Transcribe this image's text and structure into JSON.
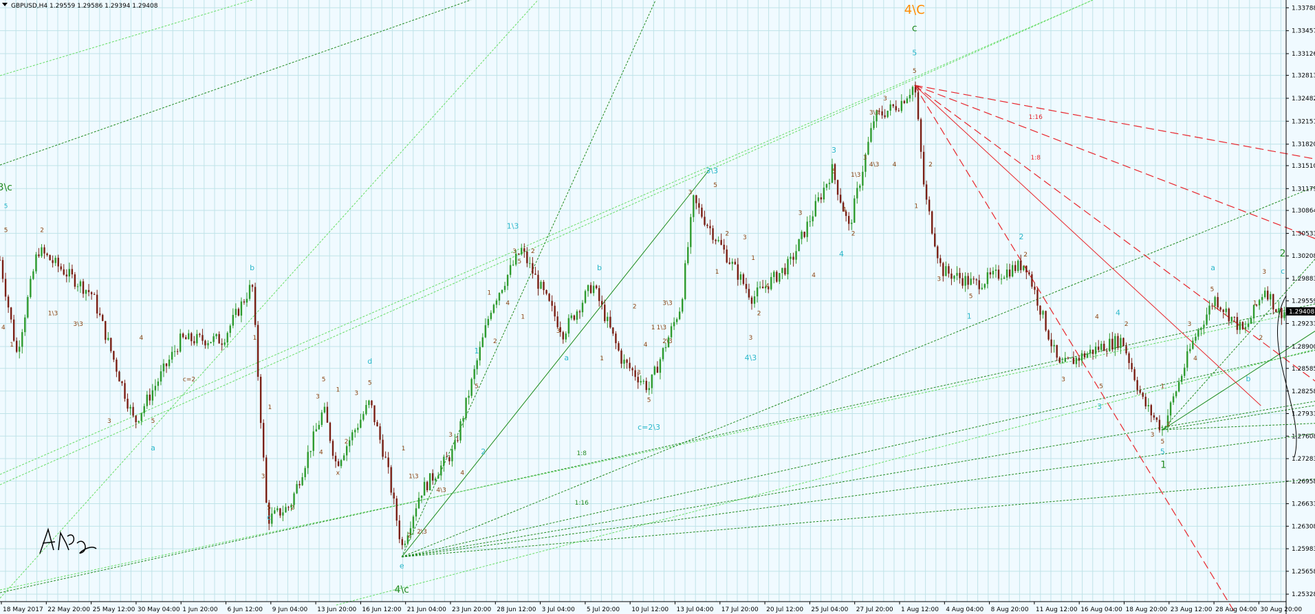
{
  "chart_data": {
    "type": "candlestick",
    "title": "GBPUSD,H4  1.29559 1.29586 1.29394 1.29408",
    "symbol": "GBPUSD",
    "timeframe": "H4",
    "ohlc_header": {
      "open": 1.29559,
      "high": 1.29586,
      "low": 1.29394,
      "close": 1.29408
    },
    "current_price": "1.29408",
    "ylim": [
      1.2522,
      1.339
    ],
    "y_ticks": [
      "1.33788",
      "1.33457",
      "1.33126",
      "1.32813",
      "1.32482",
      "1.32151",
      "1.31820",
      "1.31510",
      "1.31179",
      "1.30864",
      "1.30533",
      "1.30208",
      "1.29883",
      "1.29559",
      "1.29233",
      "1.28900",
      "1.28585",
      "1.28258",
      "1.27933",
      "1.27608",
      "1.27283",
      "1.26958",
      "1.26633",
      "1.26308",
      "1.25983",
      "1.25658",
      "1.25328"
    ],
    "x_ticks": [
      "18 May 2017",
      "22 May 20:00",
      "25 May 12:00",
      "30 May 04:00",
      "1 Jun 20:00",
      "6 Jun 12:00",
      "9 Jun 04:00",
      "13 Jun 20:00",
      "16 Jun 12:00",
      "21 Jun 04:00",
      "23 Jun 20:00",
      "28 Jun 12:00",
      "3 Jul 04:00",
      "5 Jul 20:00",
      "10 Jul 12:00",
      "13 Jul 04:00",
      "17 Jul 20:00",
      "20 Jul 12:00",
      "25 Jul 04:00",
      "27 Jul 20:00",
      "1 Aug 12:00",
      "4 Aug 04:00",
      "8 Aug 20:00",
      "11 Aug 12:00",
      "16 Aug 04:00",
      "18 Aug 20:00",
      "23 Aug 12:00",
      "28 Aug 04:00",
      "30 Aug 20:00"
    ],
    "pivots": [
      {
        "t": 0,
        "p": 1.3015
      },
      {
        "t": 20,
        "p": 1.288
      },
      {
        "t": 45,
        "p": 1.303
      },
      {
        "t": 110,
        "p": 1.2965
      },
      {
        "t": 160,
        "p": 1.278
      },
      {
        "t": 215,
        "p": 1.29
      },
      {
        "t": 265,
        "p": 1.29
      },
      {
        "t": 300,
        "p": 1.298
      },
      {
        "t": 318,
        "p": 1.264
      },
      {
        "t": 345,
        "p": 1.266
      },
      {
        "t": 385,
        "p": 1.28
      },
      {
        "t": 400,
        "p": 1.272
      },
      {
        "t": 440,
        "p": 1.281
      },
      {
        "t": 460,
        "p": 1.272
      },
      {
        "t": 478,
        "p": 1.26
      },
      {
        "t": 500,
        "p": 1.268
      },
      {
        "t": 540,
        "p": 1.274
      },
      {
        "t": 585,
        "p": 1.295
      },
      {
        "t": 620,
        "p": 1.303
      },
      {
        "t": 670,
        "p": 1.291
      },
      {
        "t": 705,
        "p": 1.298
      },
      {
        "t": 740,
        "p": 1.287
      },
      {
        "t": 772,
        "p": 1.283
      },
      {
        "t": 810,
        "p": 1.295
      },
      {
        "t": 825,
        "p": 1.31
      },
      {
        "t": 850,
        "p": 1.305
      },
      {
        "t": 895,
        "p": 1.296
      },
      {
        "t": 940,
        "p": 1.301
      },
      {
        "t": 990,
        "p": 1.3145
      },
      {
        "t": 1010,
        "p": 1.306
      },
      {
        "t": 1040,
        "p": 1.322
      },
      {
        "t": 1070,
        "p": 1.324
      },
      {
        "t": 1088,
        "p": 1.3268
      },
      {
        "t": 1100,
        "p": 1.311
      },
      {
        "t": 1120,
        "p": 1.3
      },
      {
        "t": 1160,
        "p": 1.298
      },
      {
        "t": 1220,
        "p": 1.301
      },
      {
        "t": 1260,
        "p": 1.286
      },
      {
        "t": 1310,
        "p": 1.289
      },
      {
        "t": 1335,
        "p": 1.29
      },
      {
        "t": 1360,
        "p": 1.281
      },
      {
        "t": 1383,
        "p": 1.277
      },
      {
        "t": 1420,
        "p": 1.29
      },
      {
        "t": 1445,
        "p": 1.296
      },
      {
        "t": 1480,
        "p": 1.291
      },
      {
        "t": 1505,
        "p": 1.2975
      },
      {
        "t": 1520,
        "p": 1.294
      }
    ],
    "fib_labels": [
      "1:16",
      "1:8",
      "1:8",
      "1:16"
    ],
    "wave_labels": [
      {
        "text": "4\\C",
        "t": 1088,
        "p": 1.337,
        "color": "#ff8c00",
        "size": 18
      },
      {
        "text": "c",
        "t": 1088,
        "p": 1.3345,
        "color": "#228b22",
        "size": 14
      },
      {
        "text": "5",
        "t": 1088,
        "p": 1.331,
        "color": "#2ab7ca",
        "size": 11
      },
      {
        "text": "5",
        "t": 1088,
        "p": 1.3285,
        "color": "#8b4513",
        "size": 9
      },
      {
        "text": "3\\c",
        "t": 6,
        "p": 1.3115,
        "color": "#228b22",
        "size": 14
      },
      {
        "text": "5",
        "t": 7,
        "p": 1.309,
        "color": "#2ab7ca",
        "size": 9
      },
      {
        "text": "5",
        "t": 7,
        "p": 1.3055,
        "color": "#8b4513",
        "size": 9
      },
      {
        "text": "2",
        "t": 50,
        "p": 1.3055,
        "color": "#8b4513",
        "size": 9
      },
      {
        "text": "4",
        "t": 4,
        "p": 1.2915,
        "color": "#8b4513",
        "size": 9
      },
      {
        "text": "1",
        "t": 14,
        "p": 1.289,
        "color": "#8b4513",
        "size": 9
      },
      {
        "text": "1\\3",
        "t": 63,
        "p": 1.2935,
        "color": "#8b4513",
        "size": 9
      },
      {
        "text": "3\\3",
        "t": 93,
        "p": 1.292,
        "color": "#8b4513",
        "size": 9
      },
      {
        "text": "3",
        "t": 130,
        "p": 1.278,
        "color": "#8b4513",
        "size": 9
      },
      {
        "text": "4",
        "t": 168,
        "p": 1.29,
        "color": "#8b4513",
        "size": 9
      },
      {
        "text": "5",
        "t": 182,
        "p": 1.278,
        "color": "#8b4513",
        "size": 9
      },
      {
        "text": "a",
        "t": 182,
        "p": 1.274,
        "color": "#2ab7ca",
        "size": 11
      },
      {
        "text": "c=2",
        "t": 225,
        "p": 1.284,
        "color": "#8b4513",
        "size": 9
      },
      {
        "text": "b",
        "t": 300,
        "p": 1.3,
        "color": "#2ab7ca",
        "size": 11
      },
      {
        "text": "1",
        "t": 303,
        "p": 1.29,
        "color": "#8b4513",
        "size": 9
      },
      {
        "text": "3",
        "t": 313,
        "p": 1.27,
        "color": "#8b4513",
        "size": 9
      },
      {
        "text": "5",
        "t": 320,
        "p": 1.2655,
        "color": "#8b4513",
        "size": 9
      },
      {
        "text": "c",
        "t": 320,
        "p": 1.264,
        "color": "#2ab7ca",
        "size": 11
      },
      {
        "text": "1",
        "t": 321,
        "p": 1.28,
        "color": "#8b4513",
        "size": 9
      },
      {
        "text": "2",
        "t": 348,
        "p": 1.2655,
        "color": "#8b4513",
        "size": 9
      },
      {
        "text": "3",
        "t": 378,
        "p": 1.2815,
        "color": "#8b4513",
        "size": 9
      },
      {
        "text": "5",
        "t": 385,
        "p": 1.284,
        "color": "#8b4513",
        "size": 9
      },
      {
        "text": "1",
        "t": 402,
        "p": 1.2825,
        "color": "#8b4513",
        "size": 9
      },
      {
        "text": "2",
        "t": 412,
        "p": 1.275,
        "color": "#8b4513",
        "size": 9
      },
      {
        "text": "4",
        "t": 382,
        "p": 1.2735,
        "color": "#8b4513",
        "size": 9
      },
      {
        "text": "x",
        "t": 402,
        "p": 1.2705,
        "color": "#8b4513",
        "size": 9
      },
      {
        "text": "3",
        "t": 424,
        "p": 1.282,
        "color": "#8b4513",
        "size": 9
      },
      {
        "text": "5",
        "t": 440,
        "p": 1.2835,
        "color": "#8b4513",
        "size": 9
      },
      {
        "text": "d",
        "t": 440,
        "p": 1.2865,
        "color": "#2ab7ca",
        "size": 11
      },
      {
        "text": "1",
        "t": 480,
        "p": 1.274,
        "color": "#8b4513",
        "size": 9
      },
      {
        "text": "2",
        "t": 487,
        "p": 1.2615,
        "color": "#8b4513",
        "size": 9
      },
      {
        "text": "1\\3",
        "t": 492,
        "p": 1.27,
        "color": "#8b4513",
        "size": 9
      },
      {
        "text": "2\\3",
        "t": 502,
        "p": 1.262,
        "color": "#8b4513",
        "size": 9
      },
      {
        "text": "4\\3",
        "t": 525,
        "p": 1.268,
        "color": "#8b4513",
        "size": 9
      },
      {
        "text": "3",
        "t": 536,
        "p": 1.276,
        "color": "#8b4513",
        "size": 9
      },
      {
        "text": "4",
        "t": 550,
        "p": 1.2705,
        "color": "#8b4513",
        "size": 9
      },
      {
        "text": "e",
        "t": 478,
        "p": 1.257,
        "color": "#2ab7ca",
        "size": 11
      },
      {
        "text": "4\\c",
        "t": 478,
        "p": 1.2535,
        "color": "#228b22",
        "size": 14
      },
      {
        "text": "2",
        "t": 575,
        "p": 1.2735,
        "color": "#2ab7ca",
        "size": 11
      },
      {
        "text": "1",
        "t": 567,
        "p": 1.288,
        "color": "#2ab7ca",
        "size": 11
      },
      {
        "text": "5",
        "t": 567,
        "p": 1.283,
        "color": "#8b4513",
        "size": 9
      },
      {
        "text": "2",
        "t": 589,
        "p": 1.2895,
        "color": "#8b4513",
        "size": 9
      },
      {
        "text": "1",
        "t": 582,
        "p": 1.2965,
        "color": "#8b4513",
        "size": 9
      },
      {
        "text": "1\\3",
        "t": 610,
        "p": 1.306,
        "color": "#2ab7ca",
        "size": 11
      },
      {
        "text": "3",
        "t": 612,
        "p": 1.3025,
        "color": "#8b4513",
        "size": 9
      },
      {
        "text": "5",
        "t": 618,
        "p": 1.301,
        "color": "#8b4513",
        "size": 9
      },
      {
        "text": "2",
        "t": 634,
        "p": 1.3025,
        "color": "#8b4513",
        "size": 9
      },
      {
        "text": "4",
        "t": 604,
        "p": 1.295,
        "color": "#8b4513",
        "size": 9
      },
      {
        "text": "1",
        "t": 622,
        "p": 1.293,
        "color": "#8b4513",
        "size": 9
      },
      {
        "text": "3",
        "t": 664,
        "p": 1.291,
        "color": "#8b4513",
        "size": 9
      },
      {
        "text": "a",
        "t": 674,
        "p": 1.287,
        "color": "#2ab7ca",
        "size": 11
      },
      {
        "text": "b",
        "t": 713,
        "p": 1.3,
        "color": "#2ab7ca",
        "size": 11
      },
      {
        "text": "1",
        "t": 716,
        "p": 1.287,
        "color": "#8b4513",
        "size": 9
      },
      {
        "text": "2",
        "t": 755,
        "p": 1.2945,
        "color": "#8b4513",
        "size": 9
      },
      {
        "text": "1",
        "t": 777,
        "p": 1.2915,
        "color": "#8b4513",
        "size": 9
      },
      {
        "text": "1\\3",
        "t": 787,
        "p": 1.2915,
        "color": "#8b4513",
        "size": 9
      },
      {
        "text": "3",
        "t": 760,
        "p": 1.285,
        "color": "#8b4513",
        "size": 9
      },
      {
        "text": "4",
        "t": 768,
        "p": 1.289,
        "color": "#8b4513",
        "size": 9
      },
      {
        "text": "2\\3",
        "t": 794,
        "p": 1.2895,
        "color": "#8b4513",
        "size": 9
      },
      {
        "text": "3\\3",
        "t": 794,
        "p": 1.295,
        "color": "#8b4513",
        "size": 9
      },
      {
        "text": "5",
        "t": 772,
        "p": 1.281,
        "color": "#8b4513",
        "size": 9
      },
      {
        "text": "c=2\\3",
        "t": 772,
        "p": 1.277,
        "color": "#2ab7ca",
        "size": 11
      },
      {
        "text": "3\\3",
        "t": 847,
        "p": 1.314,
        "color": "#2ab7ca",
        "size": 11
      },
      {
        "text": "3",
        "t": 821,
        "p": 1.311,
        "color": "#8b4513",
        "size": 9
      },
      {
        "text": "5",
        "t": 851,
        "p": 1.312,
        "color": "#8b4513",
        "size": 9
      },
      {
        "text": "1",
        "t": 853,
        "p": 1.2995,
        "color": "#8b4513",
        "size": 9
      },
      {
        "text": "2",
        "t": 865,
        "p": 1.305,
        "color": "#8b4513",
        "size": 9
      },
      {
        "text": "3",
        "t": 886,
        "p": 1.3045,
        "color": "#8b4513",
        "size": 9
      },
      {
        "text": "1",
        "t": 896,
        "p": 1.3015,
        "color": "#8b4513",
        "size": 9
      },
      {
        "text": "2",
        "t": 903,
        "p": 1.2935,
        "color": "#8b4513",
        "size": 9
      },
      {
        "text": "4",
        "t": 913,
        "p": 1.2975,
        "color": "#8b4513",
        "size": 9
      },
      {
        "text": "3",
        "t": 893,
        "p": 1.29,
        "color": "#8b4513",
        "size": 9
      },
      {
        "text": "4\\3",
        "t": 893,
        "p": 1.287,
        "color": "#2ab7ca",
        "size": 11
      },
      {
        "text": "3",
        "t": 952,
        "p": 1.308,
        "color": "#8b4513",
        "size": 9
      },
      {
        "text": "3",
        "t": 992,
        "p": 1.317,
        "color": "#2ab7ca",
        "size": 11
      },
      {
        "text": "5",
        "t": 992,
        "p": 1.314,
        "color": "#8b4513",
        "size": 9
      },
      {
        "text": "1",
        "t": 1005,
        "p": 1.3085,
        "color": "#8b4513",
        "size": 9
      },
      {
        "text": "2",
        "t": 1015,
        "p": 1.305,
        "color": "#8b4513",
        "size": 9
      },
      {
        "text": "1\\3",
        "t": 1018,
        "p": 1.3135,
        "color": "#8b4513",
        "size": 9
      },
      {
        "text": "4",
        "t": 968,
        "p": 1.299,
        "color": "#8b4513",
        "size": 9
      },
      {
        "text": "4",
        "t": 1001,
        "p": 1.302,
        "color": "#2ab7ca",
        "size": 11
      },
      {
        "text": "3",
        "t": 1029,
        "p": 1.316,
        "color": "#8b4513",
        "size": 9
      },
      {
        "text": "3\\3",
        "t": 1040,
        "p": 1.3225,
        "color": "#8b4513",
        "size": 9
      },
      {
        "text": "3",
        "t": 1053,
        "p": 1.3245,
        "color": "#8b4513",
        "size": 9
      },
      {
        "text": "4\\3",
        "t": 1040,
        "p": 1.315,
        "color": "#8b4513",
        "size": 9
      },
      {
        "text": "4",
        "t": 1064,
        "p": 1.315,
        "color": "#8b4513",
        "size": 9
      },
      {
        "text": "1",
        "t": 1090,
        "p": 1.309,
        "color": "#8b4513",
        "size": 9
      },
      {
        "text": "2",
        "t": 1107,
        "p": 1.315,
        "color": "#8b4513",
        "size": 9
      },
      {
        "text": "3",
        "t": 1117,
        "p": 1.2985,
        "color": "#8b4513",
        "size": 9
      },
      {
        "text": "5",
        "t": 1155,
        "p": 1.296,
        "color": "#8b4513",
        "size": 9
      },
      {
        "text": "1",
        "t": 1153,
        "p": 1.293,
        "color": "#2ab7ca",
        "size": 11
      },
      {
        "text": "2",
        "t": 1215,
        "p": 1.3045,
        "color": "#2ab7ca",
        "size": 11
      },
      {
        "text": "2",
        "t": 1220,
        "p": 1.302,
        "color": "#8b4513",
        "size": 9
      },
      {
        "text": "4",
        "t": 1305,
        "p": 1.293,
        "color": "#8b4513",
        "size": 9
      },
      {
        "text": "4",
        "t": 1330,
        "p": 1.2935,
        "color": "#2ab7ca",
        "size": 11
      },
      {
        "text": "2",
        "t": 1340,
        "p": 1.292,
        "color": "#8b4513",
        "size": 9
      },
      {
        "text": "3",
        "t": 1265,
        "p": 1.284,
        "color": "#8b4513",
        "size": 9
      },
      {
        "text": "5",
        "t": 1310,
        "p": 1.283,
        "color": "#8b4513",
        "size": 9
      },
      {
        "text": "3",
        "t": 1308,
        "p": 1.28,
        "color": "#2ab7ca",
        "size": 11
      },
      {
        "text": "3",
        "t": 1371,
        "p": 1.276,
        "color": "#8b4513",
        "size": 9
      },
      {
        "text": "1",
        "t": 1383,
        "p": 1.283,
        "color": "#8b4513",
        "size": 9
      },
      {
        "text": "5",
        "t": 1383,
        "p": 1.275,
        "color": "#8b4513",
        "size": 9
      },
      {
        "text": "5",
        "t": 1383,
        "p": 1.2735,
        "color": "#2ab7ca",
        "size": 11
      },
      {
        "text": "1",
        "t": 1384,
        "p": 1.2715,
        "color": "#228b22",
        "size": 14
      },
      {
        "text": "2",
        "t": 1390,
        "p": 1.2775,
        "color": "#8b4513",
        "size": 9
      },
      {
        "text": "3",
        "t": 1415,
        "p": 1.292,
        "color": "#8b4513",
        "size": 9
      },
      {
        "text": "4",
        "t": 1422,
        "p": 1.287,
        "color": "#8b4513",
        "size": 9
      },
      {
        "text": "5",
        "t": 1442,
        "p": 1.297,
        "color": "#8b4513",
        "size": 9
      },
      {
        "text": "a",
        "t": 1443,
        "p": 1.3,
        "color": "#2ab7ca",
        "size": 11
      },
      {
        "text": "b",
        "t": 1485,
        "p": 1.284,
        "color": "#2ab7ca",
        "size": 11
      },
      {
        "text": "1",
        "t": 1493,
        "p": 1.295,
        "color": "#8b4513",
        "size": 9
      },
      {
        "text": "2",
        "t": 1500,
        "p": 1.29,
        "color": "#8b4513",
        "size": 9
      },
      {
        "text": "3",
        "t": 1504,
        "p": 1.2995,
        "color": "#8b4513",
        "size": 9
      },
      {
        "text": "2",
        "t": 1526,
        "p": 1.302,
        "color": "#228b22",
        "size": 14
      },
      {
        "text": "c",
        "t": 1526,
        "p": 1.2995,
        "color": "#2ab7ca",
        "size": 11
      }
    ]
  }
}
